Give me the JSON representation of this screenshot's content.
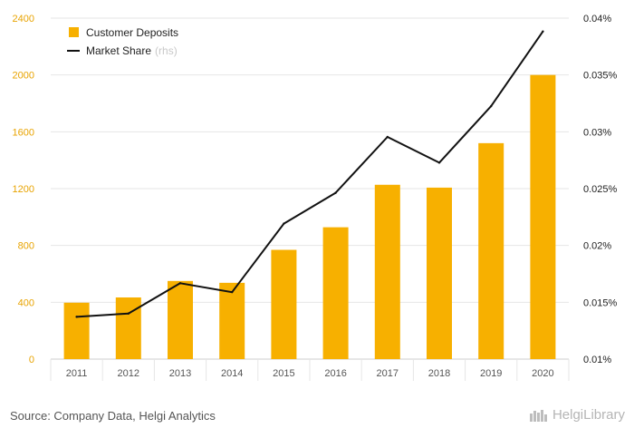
{
  "chart_data": {
    "type": "bar",
    "categories": [
      "2011",
      "2012",
      "2013",
      "2014",
      "2015",
      "2016",
      "2017",
      "2018",
      "2019",
      "2020"
    ],
    "series": [
      {
        "name": "Customer Deposits",
        "type": "bar",
        "axis": "left",
        "color": "#f7b000",
        "values": [
          397,
          434,
          550,
          537,
          769,
          928,
          1227,
          1207,
          1520,
          2000
        ]
      },
      {
        "name": "Market Share",
        "type": "line",
        "axis": "right",
        "color": "#111111",
        "values": [
          0.01372,
          0.01401,
          0.01668,
          0.01589,
          0.02192,
          0.02463,
          0.02955,
          0.02728,
          0.03225,
          0.03883
        ]
      }
    ],
    "legend": [
      {
        "label": "Customer Deposits",
        "suffix": ""
      },
      {
        "label": "Market Share",
        "suffix": "(rhs)"
      }
    ],
    "left_axis": {
      "ylim": [
        0,
        2400
      ],
      "ticks": [
        "0",
        "400",
        "800",
        "1200",
        "1600",
        "2000",
        "2400"
      ]
    },
    "right_axis": {
      "ylim": [
        0.01,
        0.04
      ],
      "ticks": [
        "0.01%",
        "0.015%",
        "0.02%",
        "0.025%",
        "0.03%",
        "0.035%",
        "0.04%"
      ]
    },
    "grid": true,
    "legend_position": "top-left",
    "colors": {
      "bar": "#f7b000",
      "line": "#111111",
      "left_tick": "#e8a300",
      "grid": "#e6e6e6"
    }
  },
  "footer": {
    "source": "Source: Company Data, Helgi Analytics",
    "brand": "HelgiLibrary"
  }
}
